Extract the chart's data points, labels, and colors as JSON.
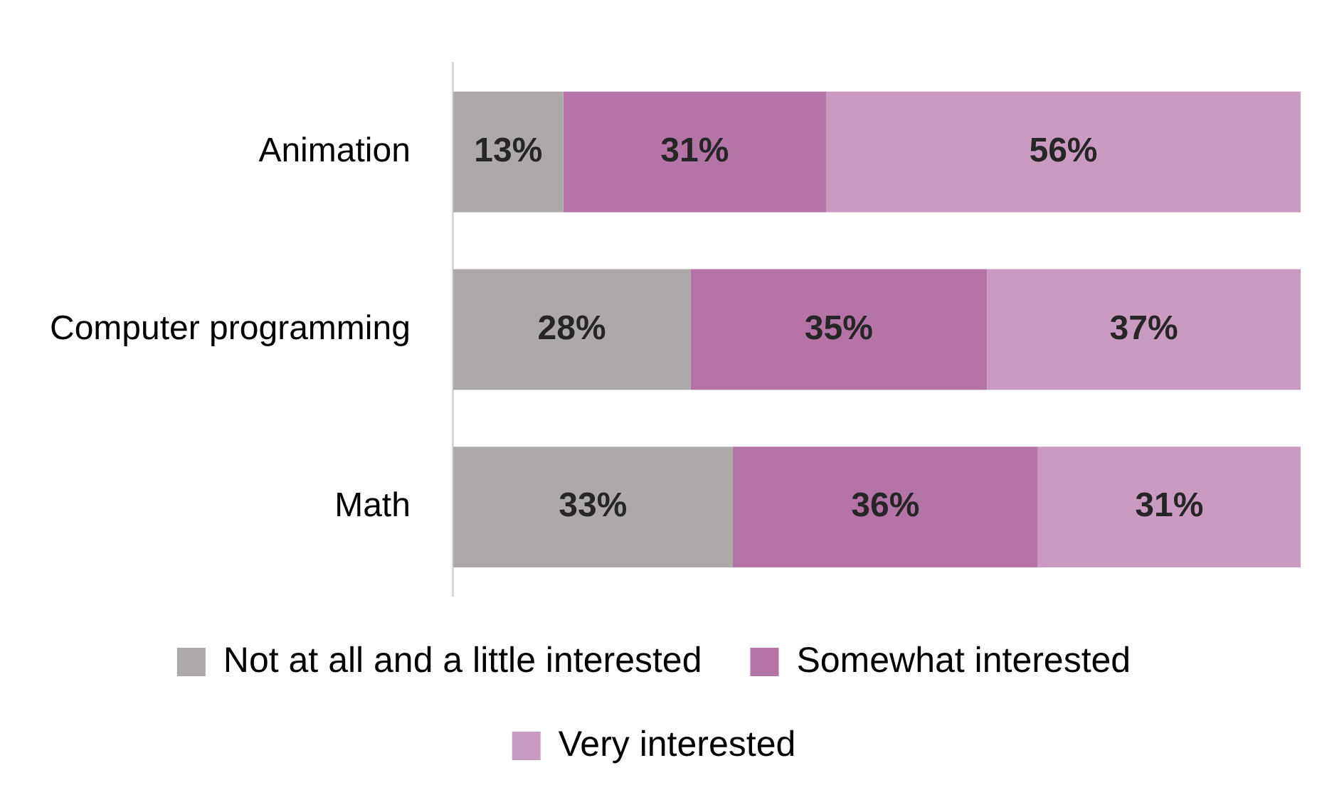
{
  "chart_data": {
    "type": "bar",
    "orientation": "horizontal",
    "stacked": true,
    "categories": [
      "Animation",
      "Computer programming",
      "Math"
    ],
    "series": [
      {
        "name": "Not at all and a little interested",
        "color": "#ada9a8",
        "values": [
          13,
          28,
          33
        ],
        "value_labels": [
          "13%",
          "28%",
          "33%"
        ]
      },
      {
        "name": "Somewhat interested",
        "color": "#b474a6",
        "values": [
          31,
          35,
          36
        ],
        "value_labels": [
          "31%",
          "35%",
          "36%"
        ]
      },
      {
        "name": "Very interested",
        "color": "#c99bc0",
        "values": [
          56,
          37,
          31
        ],
        "value_labels": [
          "56%",
          "37%",
          "31%"
        ]
      }
    ],
    "tick_labels": "y",
    "legend": "bottom"
  }
}
